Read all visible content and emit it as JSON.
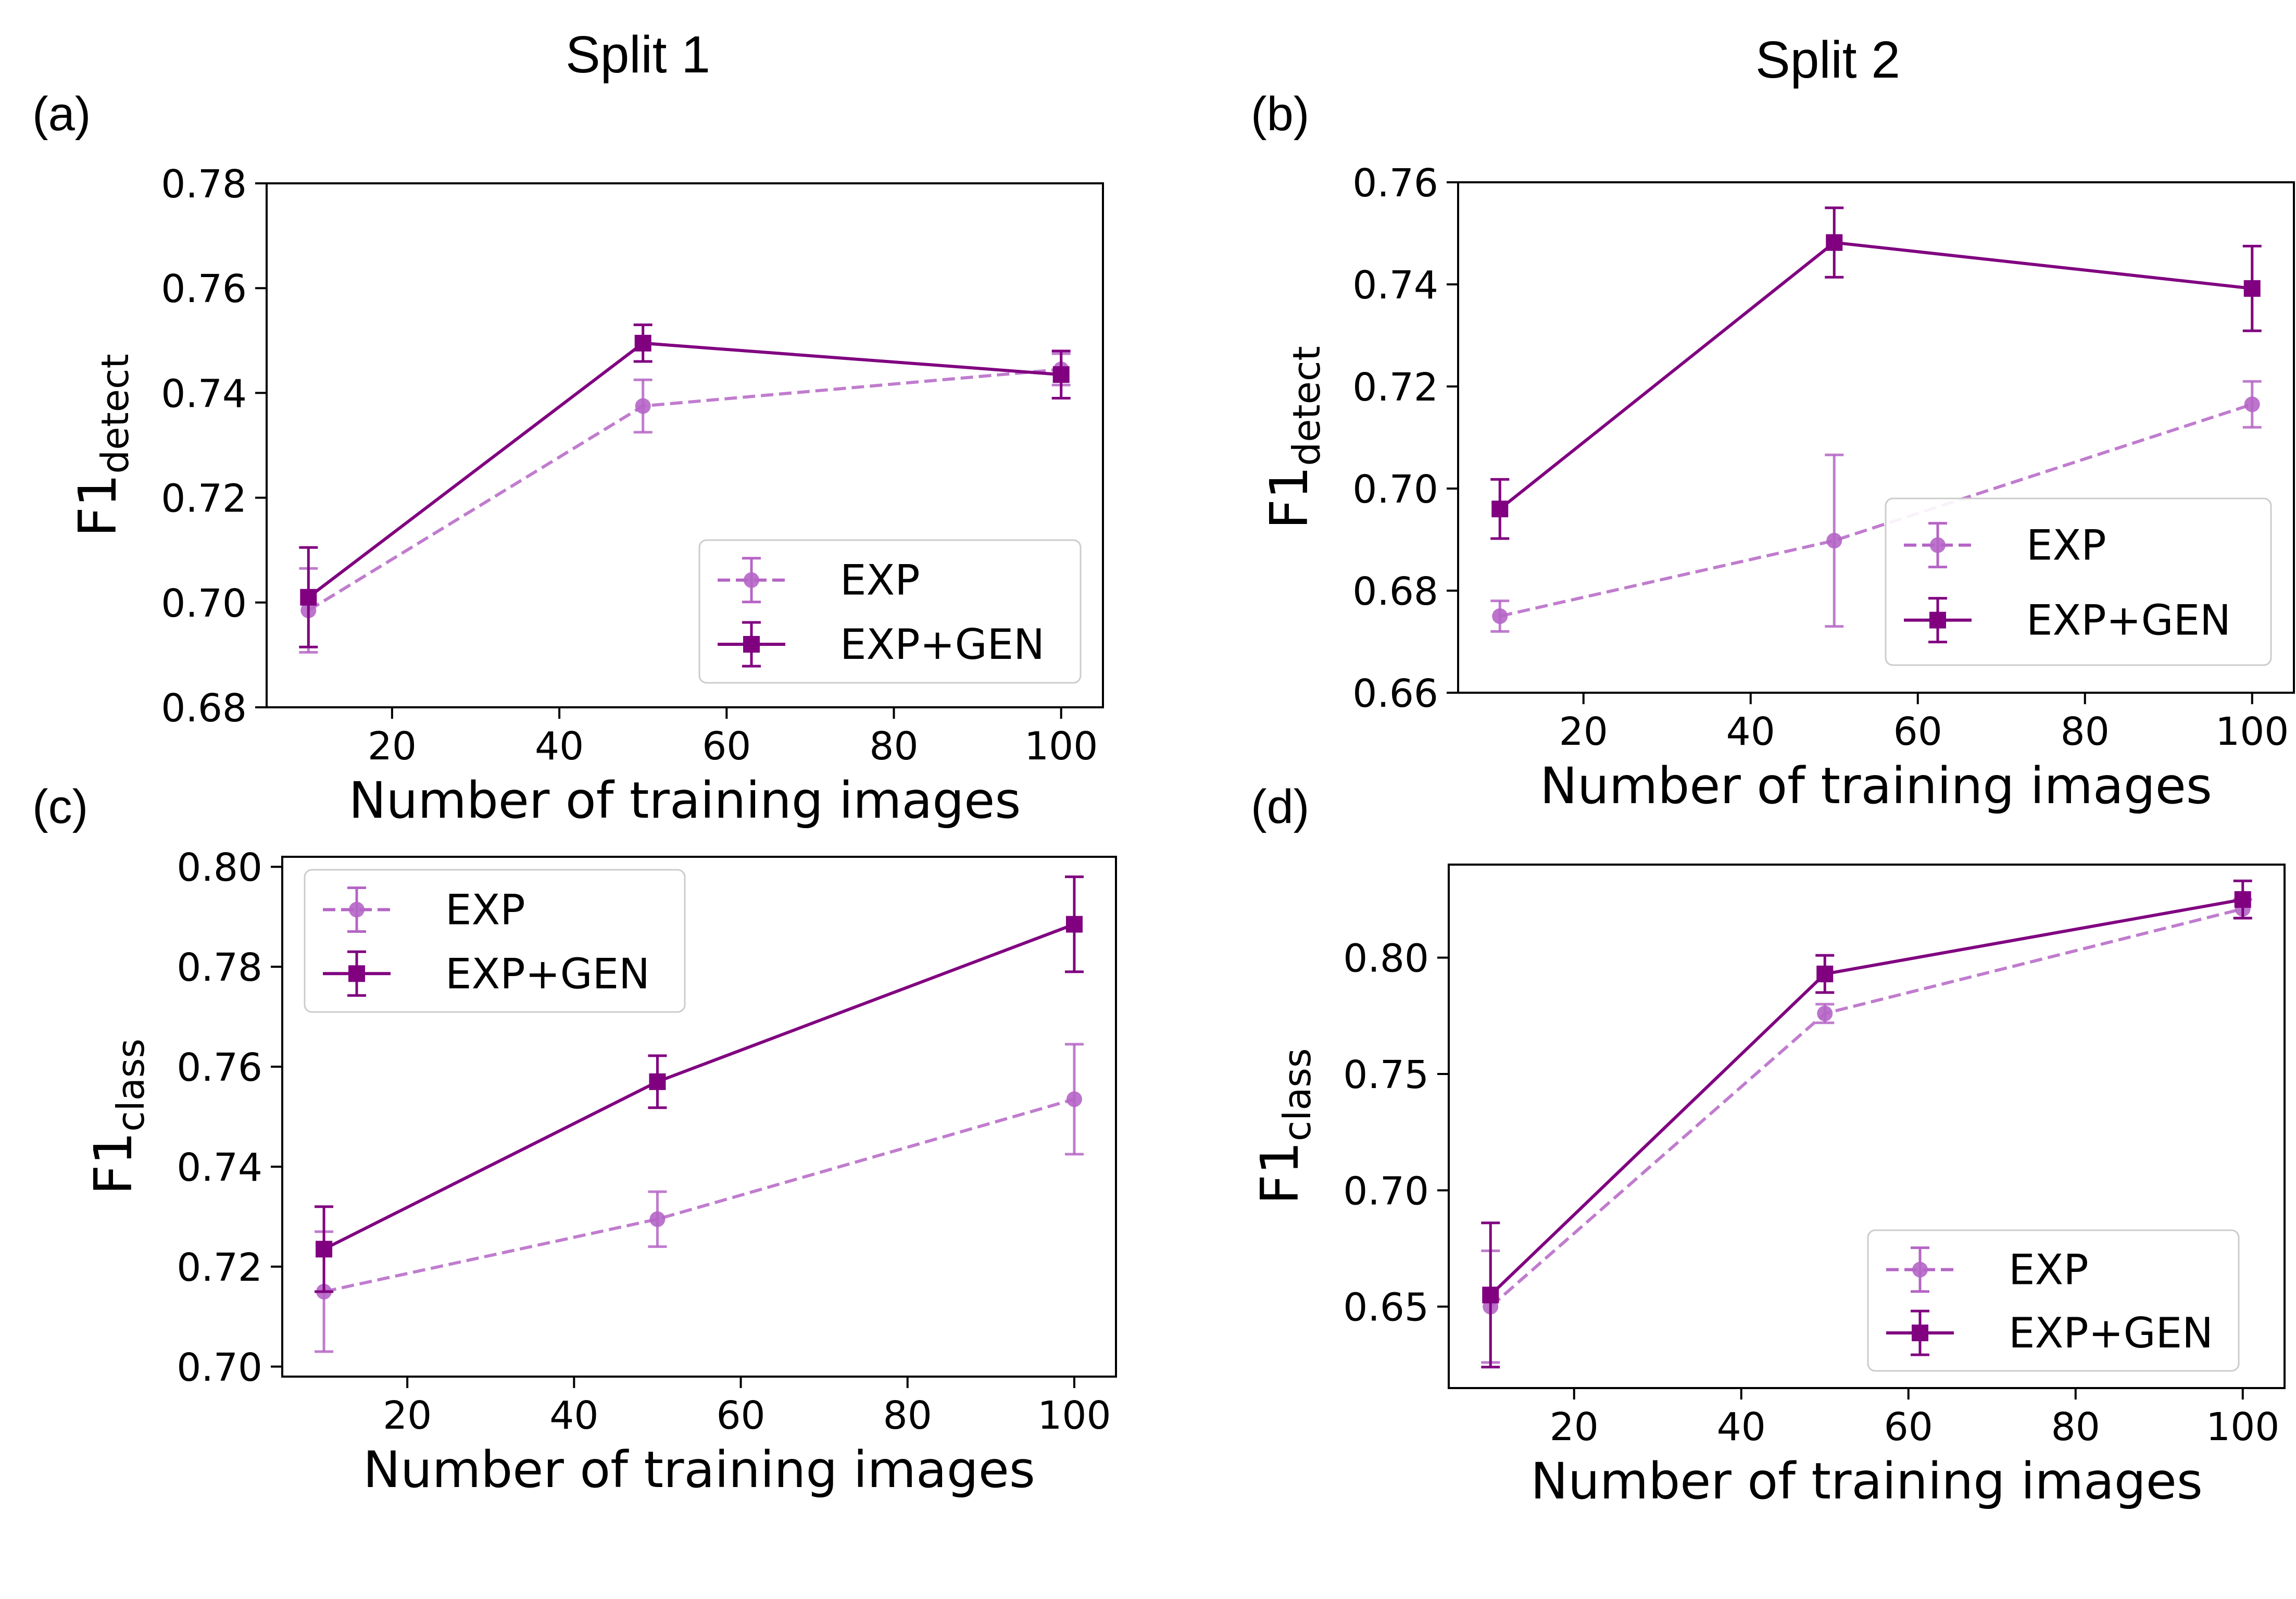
{
  "figure": {
    "split_titles": [
      "Split 1",
      "Split 2"
    ],
    "colors": {
      "exp": "#b565c6",
      "exp_gen": "#800080",
      "axis": "#000000"
    }
  },
  "chart_data": [
    {
      "type": "line",
      "panel_label": "(a)",
      "xlabel": "Number of training images",
      "ylabel_main": "F1",
      "ylabel_sub": "detect",
      "xlim": [
        5,
        105
      ],
      "ylim": [
        0.68,
        0.78
      ],
      "xticks": [
        20,
        40,
        60,
        80,
        100
      ],
      "yticks": [
        0.68,
        0.7,
        0.72,
        0.74,
        0.76,
        0.78
      ],
      "ytick_labels": [
        "0.68",
        "0.70",
        "0.72",
        "0.74",
        "0.76",
        "0.78"
      ],
      "legend_position": "lower-right",
      "series": [
        {
          "name": "EXP",
          "style": "dashed",
          "marker": "circle",
          "x": [
            10,
            50,
            100
          ],
          "y": [
            0.6985,
            0.7375,
            0.7445
          ],
          "err": [
            0.008,
            0.005,
            0.003
          ]
        },
        {
          "name": "EXP+GEN",
          "style": "solid",
          "marker": "square",
          "x": [
            10,
            50,
            100
          ],
          "y": [
            0.701,
            0.7495,
            0.7435
          ],
          "err": [
            0.0095,
            0.0035,
            0.0045
          ]
        }
      ]
    },
    {
      "type": "line",
      "panel_label": "(b)",
      "xlabel": "Number of training images",
      "ylabel_main": "F1",
      "ylabel_sub": "detect",
      "xlim": [
        5,
        105
      ],
      "ylim": [
        0.66,
        0.76
      ],
      "xticks": [
        20,
        40,
        60,
        80,
        100
      ],
      "yticks": [
        0.66,
        0.68,
        0.7,
        0.72,
        0.74,
        0.76
      ],
      "ytick_labels": [
        "0.66",
        "0.68",
        "0.70",
        "0.72",
        "0.74",
        "0.76"
      ],
      "legend_position": "lower-right",
      "series": [
        {
          "name": "EXP",
          "style": "dashed",
          "marker": "circle",
          "x": [
            10,
            50,
            100
          ],
          "y": [
            0.675,
            0.6898,
            0.7165
          ],
          "err": [
            0.003,
            0.0168,
            0.0045
          ]
        },
        {
          "name": "EXP+GEN",
          "style": "solid",
          "marker": "square",
          "x": [
            10,
            50,
            100
          ],
          "y": [
            0.696,
            0.7482,
            0.7392
          ],
          "err": [
            0.0058,
            0.0068,
            0.0083
          ]
        }
      ]
    },
    {
      "type": "line",
      "panel_label": "(c)",
      "xlabel": "Number of training images",
      "ylabel_main": "F1",
      "ylabel_sub": "class",
      "xlim": [
        5,
        105
      ],
      "ylim": [
        0.698,
        0.802
      ],
      "xticks": [
        20,
        40,
        60,
        80,
        100
      ],
      "yticks": [
        0.7,
        0.72,
        0.74,
        0.76,
        0.78,
        0.8
      ],
      "ytick_labels": [
        "0.70",
        "0.72",
        "0.74",
        "0.76",
        "0.78",
        "0.80"
      ],
      "legend_position": "upper-left",
      "series": [
        {
          "name": "EXP",
          "style": "dashed",
          "marker": "circle",
          "x": [
            10,
            50,
            100
          ],
          "y": [
            0.715,
            0.7295,
            0.7535
          ],
          "err": [
            0.012,
            0.0055,
            0.011
          ]
        },
        {
          "name": "EXP+GEN",
          "style": "solid",
          "marker": "square",
          "x": [
            10,
            50,
            100
          ],
          "y": [
            0.7235,
            0.757,
            0.7885
          ],
          "err": [
            0.0085,
            0.0052,
            0.0095
          ]
        }
      ]
    },
    {
      "type": "line",
      "panel_label": "(d)",
      "xlabel": "Number of training images",
      "ylabel_main": "F1",
      "ylabel_sub": "class",
      "xlim": [
        5,
        105
      ],
      "ylim": [
        0.615,
        0.84
      ],
      "xticks": [
        20,
        40,
        60,
        80,
        100
      ],
      "yticks": [
        0.65,
        0.7,
        0.75,
        0.8
      ],
      "ytick_labels": [
        "0.65",
        "0.70",
        "0.75",
        "0.80"
      ],
      "legend_position": "lower-right",
      "series": [
        {
          "name": "EXP",
          "style": "dashed",
          "marker": "circle",
          "x": [
            10,
            50,
            100
          ],
          "y": [
            0.65,
            0.776,
            0.821
          ],
          "err": [
            0.024,
            0.004,
            0.004
          ]
        },
        {
          "name": "EXP+GEN",
          "style": "solid",
          "marker": "square",
          "x": [
            10,
            50,
            100
          ],
          "y": [
            0.655,
            0.793,
            0.825
          ],
          "err": [
            0.031,
            0.008,
            0.008
          ]
        }
      ]
    }
  ]
}
